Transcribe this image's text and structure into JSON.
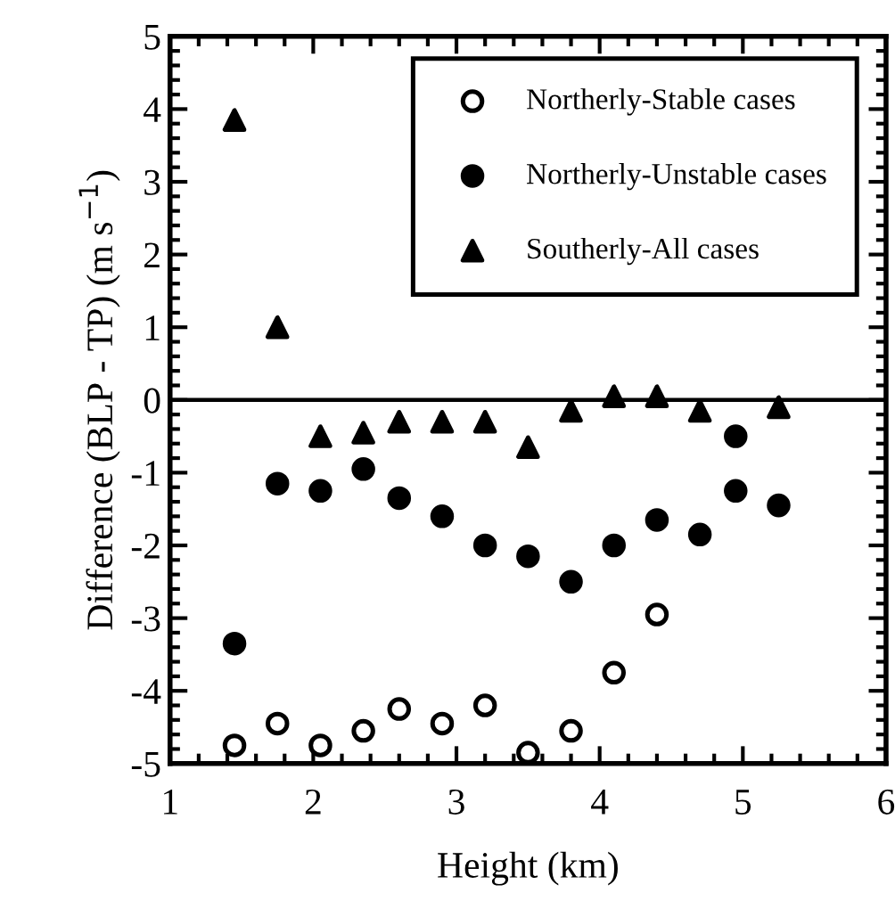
{
  "chart_data": {
    "type": "scatter",
    "xlabel": "Height (km)",
    "ylabel": "Difference (BLP - TP) (m s$^{−1}$)",
    "xlim": [
      1,
      6
    ],
    "xticks": [
      1,
      2,
      3,
      4,
      5,
      6
    ],
    "ylim": [
      -5,
      5
    ],
    "yticks": [
      -5,
      -4,
      -3,
      -2,
      -1,
      0,
      1,
      2,
      3,
      4,
      5
    ],
    "legend": "top right",
    "grid": false,
    "ref_lines": [
      {
        "axis": "y",
        "value": 0,
        "color": "#000000"
      }
    ],
    "series": [
      {
        "name": "Northerly-Stable cases",
        "color": "#ffffff",
        "marker": "circle",
        "x": [
          1.45,
          1.75,
          2.05,
          2.35,
          2.6,
          2.9,
          3.2,
          3.5,
          3.8,
          4.1,
          4.4
        ],
        "values": [
          -4.75,
          -4.45,
          -4.75,
          -4.55,
          -4.25,
          -4.45,
          -4.2,
          -4.85,
          -4.55,
          -3.75,
          -2.95
        ]
      },
      {
        "name": "Northerly-Unstable cases",
        "color": "#000000",
        "marker": "circle",
        "x": [
          1.45,
          1.75,
          2.05,
          2.35,
          2.6,
          2.9,
          3.2,
          3.5,
          3.8,
          4.1,
          4.4,
          4.7,
          4.95,
          4.95,
          5.25
        ],
        "values": [
          -3.35,
          -1.15,
          -1.25,
          -0.95,
          -1.35,
          -1.6,
          -2.0,
          -2.15,
          -2.5,
          -2.0,
          -1.65,
          -1.85,
          -0.5,
          -1.25,
          -1.45
        ]
      },
      {
        "name": "Southerly-All cases",
        "color": "#000000",
        "marker": "triangle",
        "x": [
          1.45,
          1.75,
          2.05,
          2.35,
          2.6,
          2.9,
          3.2,
          3.5,
          3.8,
          4.1,
          4.4,
          4.7,
          5.25
        ],
        "values": [
          3.85,
          1.0,
          -0.5,
          -0.45,
          -0.3,
          -0.3,
          -0.3,
          -0.65,
          -0.15,
          0.05,
          0.05,
          -0.15,
          -0.1
        ]
      }
    ]
  }
}
